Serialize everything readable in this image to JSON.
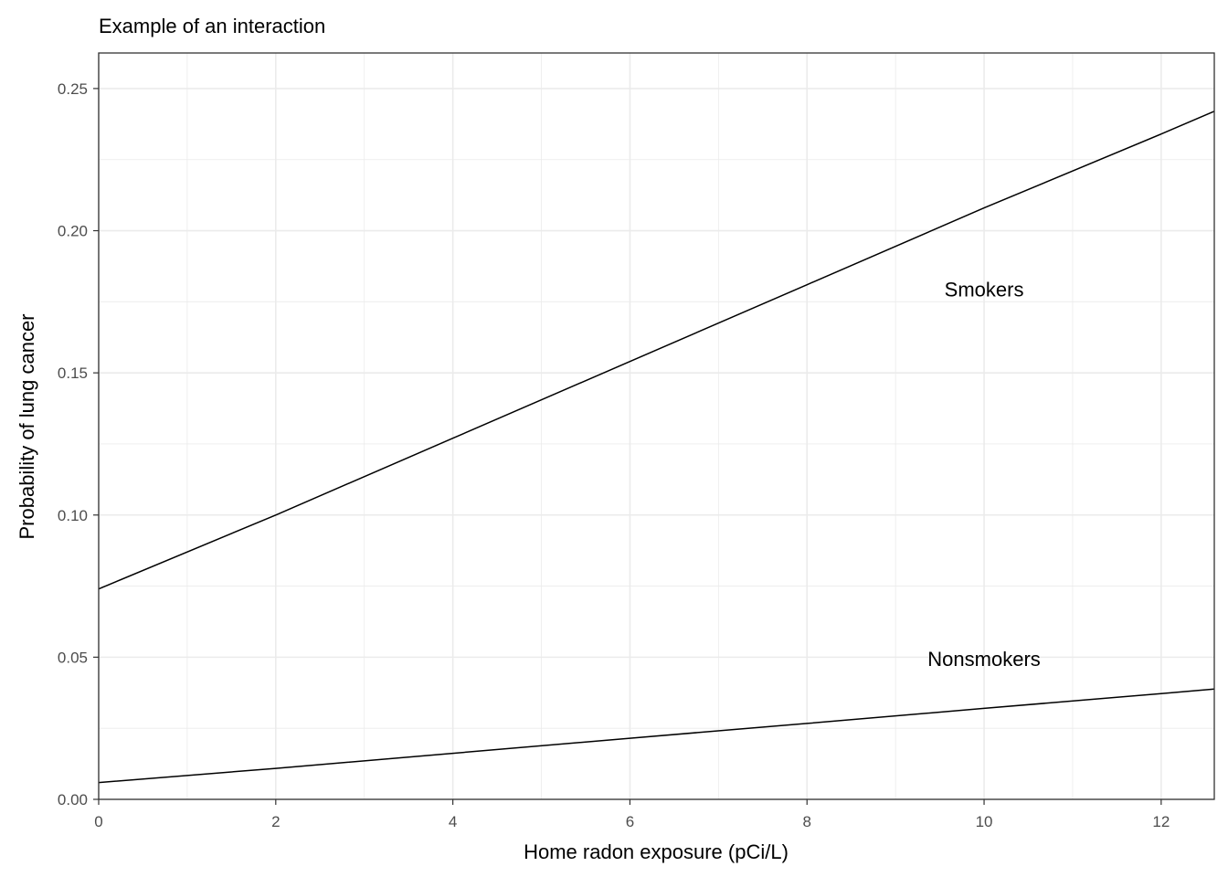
{
  "chart_data": {
    "type": "line",
    "title": "Example of an interaction",
    "xlabel": "Home radon exposure (pCi/L)",
    "ylabel": "Probability of lung cancer",
    "xlim": [
      0,
      12.6
    ],
    "ylim": [
      0,
      0.2625
    ],
    "x_ticks": [
      0,
      2,
      4,
      6,
      8,
      10,
      12
    ],
    "x_tick_labels": [
      "0",
      "2",
      "4",
      "6",
      "8",
      "10",
      "12"
    ],
    "y_ticks": [
      0,
      0.05,
      0.1,
      0.15,
      0.2,
      0.25
    ],
    "y_tick_labels": [
      "0.00",
      "0.05",
      "0.10",
      "0.15",
      "0.20",
      "0.25"
    ],
    "grid": true,
    "series": [
      {
        "x": [
          0,
          2,
          4,
          6,
          8,
          10,
          12,
          12.6
        ],
        "y": [
          0.074,
          0.1,
          0.127,
          0.154,
          0.181,
          0.208,
          0.234,
          0.242
        ]
      },
      {
        "x": [
          0,
          2,
          4,
          6,
          8,
          10,
          12,
          12.6
        ],
        "y": [
          0.0059,
          0.0109,
          0.0162,
          0.0215,
          0.0267,
          0.032,
          0.0372,
          0.0388
        ]
      }
    ],
    "annotations": [
      {
        "text": "Smokers",
        "x": 10.0,
        "y": 0.1795
      },
      {
        "text": "Nonsmokers",
        "x": 10.0,
        "y": 0.0495
      }
    ],
    "colors": {
      "line": "#000000",
      "grid": "#ebebeb",
      "panel_border": "#333333",
      "tick_text": "#4d4d4d"
    }
  }
}
